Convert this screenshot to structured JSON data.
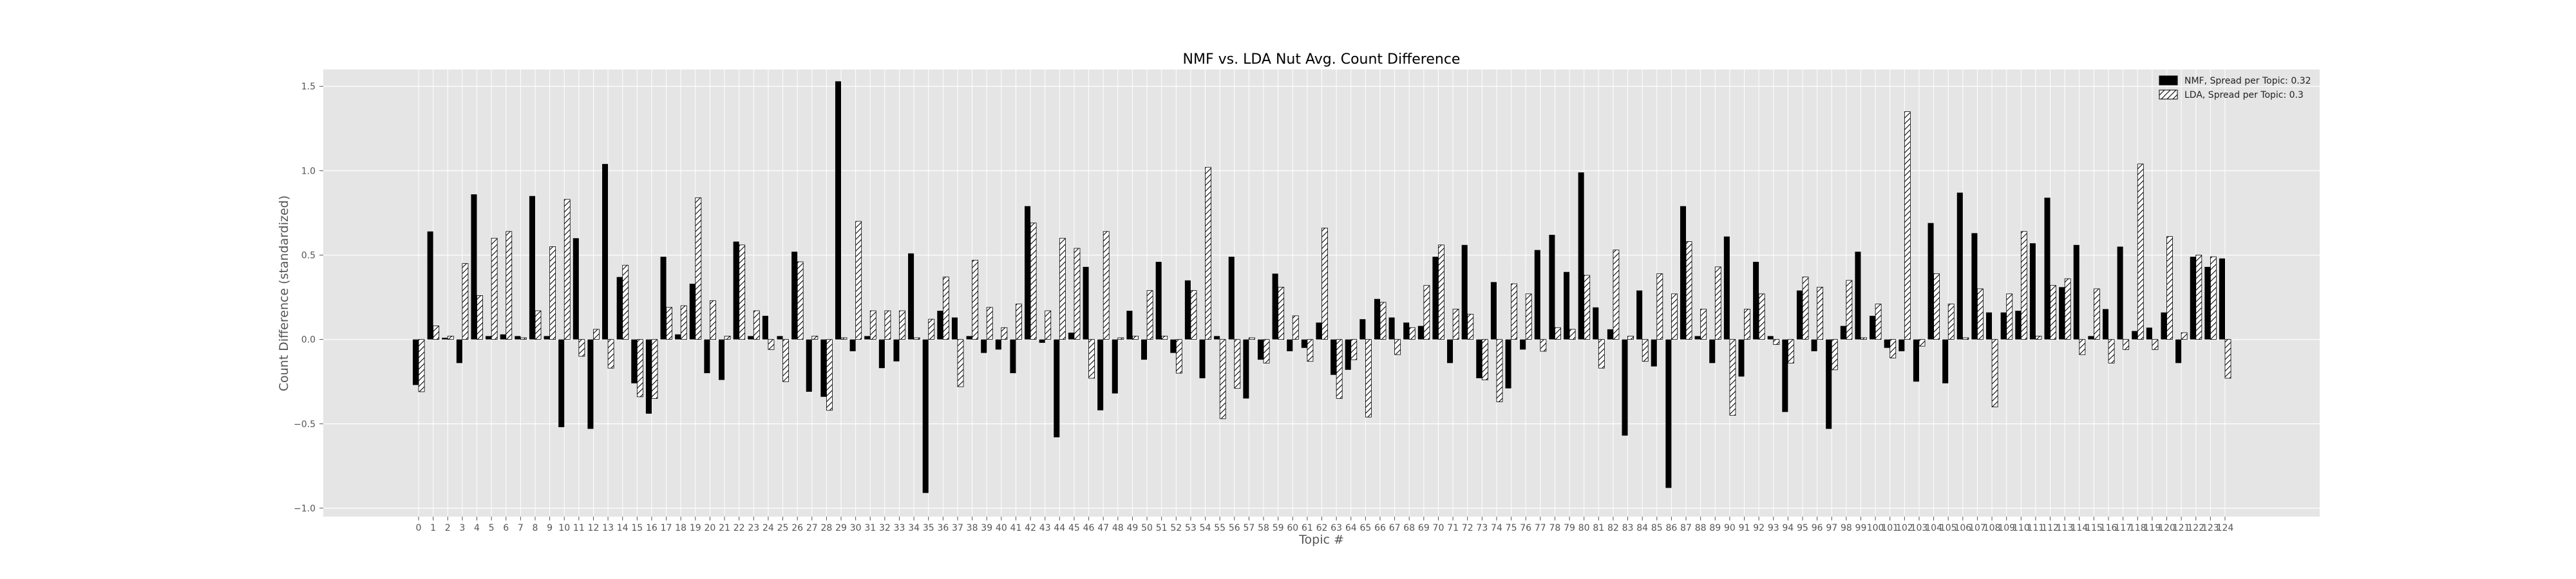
{
  "chart_data": {
    "type": "bar",
    "title": "NMF vs. LDA Nut Avg. Count Difference",
    "xlabel": "Topic #",
    "ylabel": "Count Difference (standardized)",
    "ylim": [
      -1.05,
      1.6
    ],
    "yticks": [
      -1.0,
      -0.5,
      0.0,
      0.5,
      1.0,
      1.5
    ],
    "ytick_labels": [
      "−1.0",
      "−0.5",
      "0.0",
      "0.5",
      "1.0",
      "1.5"
    ],
    "grid": true,
    "legend_position": "top-right",
    "colors": {
      "background": "#e5e5e5",
      "grid": "#ffffff",
      "nmf": "#000000",
      "lda_fill": "#ffffff",
      "lda_hatch": "#000000"
    },
    "categories": [
      "0",
      "1",
      "2",
      "3",
      "4",
      "5",
      "6",
      "7",
      "8",
      "9",
      "10",
      "11",
      "12",
      "13",
      "14",
      "15",
      "16",
      "17",
      "18",
      "19",
      "20",
      "21",
      "22",
      "23",
      "24",
      "25",
      "26",
      "27",
      "28",
      "29",
      "30",
      "31",
      "32",
      "33",
      "34",
      "35",
      "36",
      "37",
      "38",
      "39",
      "40",
      "41",
      "42",
      "43",
      "44",
      "45",
      "46",
      "47",
      "48",
      "49",
      "50",
      "51",
      "52",
      "53",
      "54",
      "55",
      "56",
      "57",
      "58",
      "59",
      "60",
      "61",
      "62",
      "63",
      "64",
      "65",
      "66",
      "67",
      "68",
      "69",
      "70",
      "71",
      "72",
      "73",
      "74",
      "75",
      "76",
      "77",
      "78",
      "79",
      "80",
      "81",
      "82",
      "83",
      "84",
      "85",
      "86",
      "87",
      "88",
      "89",
      "90",
      "91",
      "92",
      "93",
      "94",
      "95",
      "96",
      "97",
      "98",
      "99",
      "100",
      "101",
      "102",
      "103",
      "104",
      "105",
      "106",
      "107",
      "108",
      "109",
      "110",
      "111",
      "112",
      "113",
      "114",
      "115",
      "116",
      "117",
      "118",
      "119",
      "120",
      "121",
      "122",
      "123",
      "124"
    ],
    "series": [
      {
        "name": "NMF, Spread per Topic: 0.32",
        "pattern": "solid",
        "values": [
          -0.27,
          0.64,
          0.01,
          -0.14,
          0.86,
          0.02,
          0.03,
          0.02,
          0.85,
          0.02,
          -0.52,
          0.6,
          -0.53,
          1.04,
          0.37,
          -0.26,
          -0.44,
          0.49,
          0.03,
          0.33,
          -0.2,
          -0.24,
          0.58,
          0.02,
          0.14,
          0.02,
          0.52,
          -0.31,
          -0.34,
          1.53,
          -0.07,
          0.02,
          -0.17,
          -0.13,
          0.51,
          -0.91,
          0.17,
          0.13,
          0.02,
          -0.08,
          -0.06,
          -0.2,
          0.79,
          -0.02,
          -0.58,
          0.04,
          0.43,
          -0.42,
          -0.32,
          0.17,
          -0.12,
          0.46,
          -0.08,
          0.35,
          -0.23,
          0.02,
          0.49,
          -0.35,
          -0.12,
          0.39,
          -0.07,
          -0.05,
          0.1,
          -0.21,
          -0.18,
          0.12,
          0.24,
          0.13,
          0.1,
          0.08,
          0.49,
          -0.14,
          0.56,
          -0.23,
          0.34,
          -0.29,
          -0.06,
          0.53,
          0.62,
          0.4,
          0.99,
          0.19,
          0.06,
          -0.57,
          0.29,
          -0.16,
          -0.88,
          0.79,
          0.02,
          -0.14,
          0.61,
          -0.22,
          0.46,
          0.02,
          -0.43,
          0.29,
          -0.07,
          -0.53,
          0.08,
          0.52,
          0.14,
          -0.05,
          -0.07,
          -0.25,
          0.69,
          -0.26,
          0.87,
          0.63,
          0.16,
          0.16,
          0.17,
          0.57,
          0.84,
          0.31,
          0.56,
          0.02,
          0.18,
          0.55,
          0.05,
          0.07,
          0.16,
          -0.14,
          0.49,
          0.43,
          0.48
        ]
      },
      {
        "name": "LDA, Spread per Topic: 0.3",
        "pattern": "hatched",
        "values": [
          -0.31,
          0.08,
          0.02,
          0.45,
          0.26,
          0.6,
          0.64,
          0.01,
          0.17,
          0.55,
          0.83,
          -0.1,
          0.06,
          -0.17,
          0.44,
          -0.34,
          -0.35,
          0.19,
          0.2,
          0.84,
          0.23,
          0.02,
          0.56,
          0.17,
          -0.06,
          -0.25,
          0.46,
          0.02,
          -0.42,
          0.01,
          0.7,
          0.17,
          0.17,
          0.17,
          0.01,
          0.12,
          0.37,
          -0.28,
          0.47,
          0.19,
          0.07,
          0.21,
          0.69,
          0.17,
          0.6,
          0.54,
          -0.23,
          0.64,
          0.01,
          0.02,
          0.29,
          0.02,
          -0.2,
          0.29,
          1.02,
          -0.47,
          -0.29,
          0.01,
          -0.14,
          0.31,
          0.14,
          -0.13,
          0.66,
          -0.35,
          -0.12,
          -0.46,
          0.22,
          -0.09,
          0.07,
          0.32,
          0.56,
          0.18,
          0.15,
          -0.24,
          -0.37,
          0.33,
          0.27,
          -0.07,
          0.07,
          0.06,
          0.38,
          -0.17,
          0.53,
          0.02,
          -0.13,
          0.39,
          0.27,
          0.58,
          0.18,
          0.43,
          -0.45,
          0.18,
          0.27,
          -0.03,
          -0.14,
          0.37,
          0.31,
          -0.18,
          0.35,
          0.01,
          0.21,
          -0.11,
          1.35,
          -0.04,
          0.39,
          0.21,
          0.01,
          0.3,
          -0.4,
          0.27,
          0.64,
          0.02,
          0.32,
          0.36,
          -0.09,
          0.3,
          -0.14,
          -0.06,
          1.04,
          -0.06,
          0.61,
          0.04,
          0.5,
          0.49,
          -0.23
        ]
      }
    ]
  }
}
